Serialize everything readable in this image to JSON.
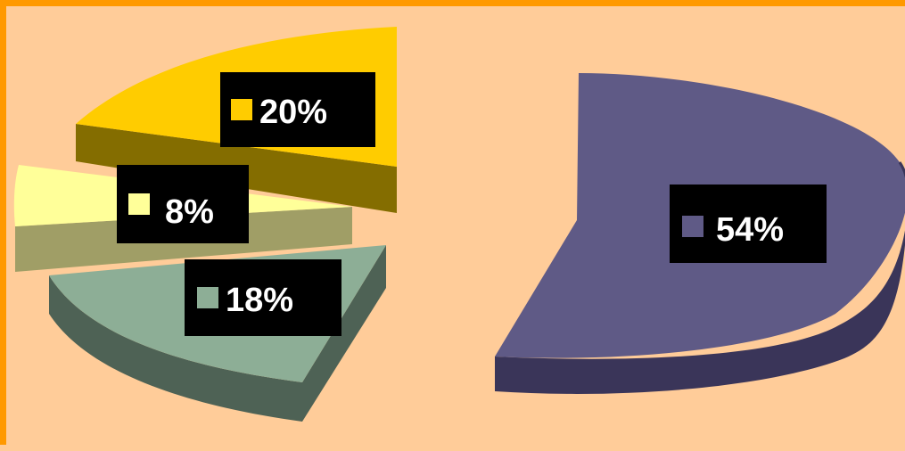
{
  "chart_data": {
    "type": "pie",
    "style": "3d-exploded",
    "title": "",
    "slices": [
      {
        "value": 54,
        "label": "54%",
        "color": "#5F5A86",
        "side_color": "#3A3559"
      },
      {
        "value": 20,
        "label": "20%",
        "color": "#FFCC00",
        "side_color": "#846D00"
      },
      {
        "value": 8,
        "label": "8%",
        "color": "#FFFF99",
        "side_color": "#A09E66"
      },
      {
        "value": 18,
        "label": "18%",
        "color": "#8DAE96",
        "side_color": "#4E6255"
      }
    ],
    "label_box_color": "#000000",
    "background_color": "#FFCC99",
    "frame_color": "#FF9900"
  }
}
